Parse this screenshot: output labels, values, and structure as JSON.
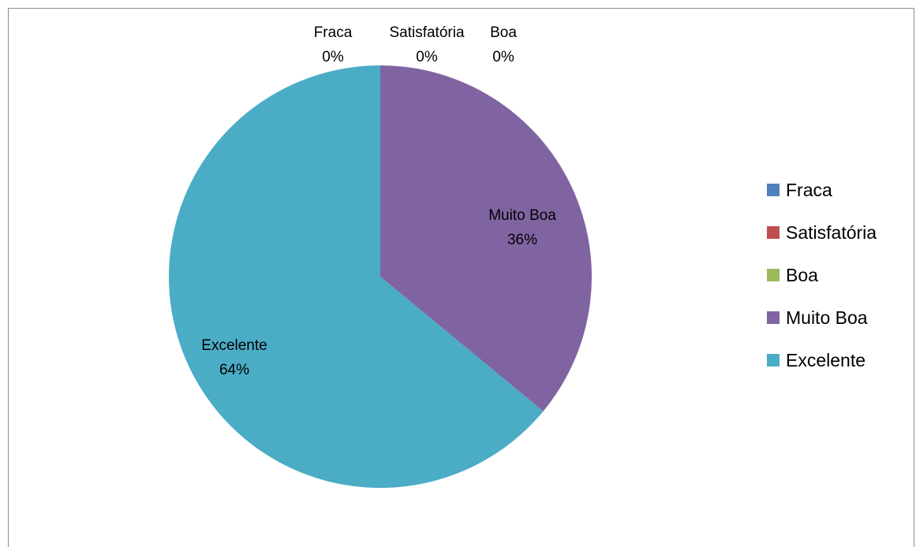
{
  "chart_data": {
    "type": "pie",
    "categories": [
      "Fraca",
      "Satisfatória",
      "Boa",
      "Muito Boa",
      "Excelente"
    ],
    "values": [
      0,
      0,
      0,
      36,
      64
    ],
    "percent_labels": [
      "0%",
      "0%",
      "0%",
      "36%",
      "64%"
    ],
    "colors": [
      "#4f81bd",
      "#c0504d",
      "#9bbb59",
      "#8064a2",
      "#4bacc6"
    ],
    "legend_placement": "right",
    "title": ""
  }
}
